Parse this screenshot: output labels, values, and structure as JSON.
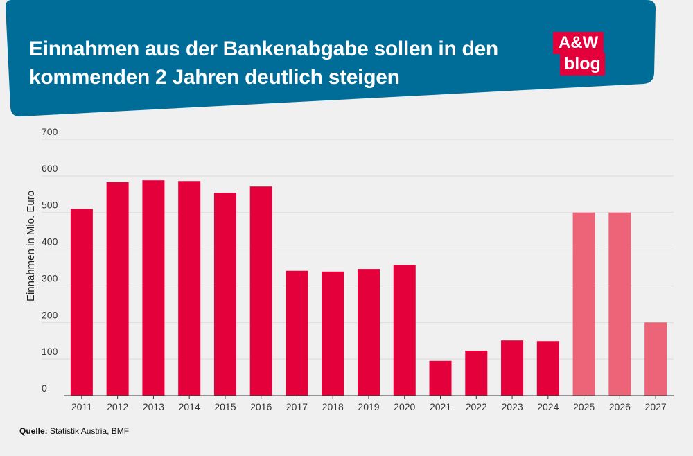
{
  "header": {
    "title_line_1": "Einnahmen aus der Bankenabgabe sollen in den",
    "title_line_2": "kommenden 2 Jahren deutlich steigen",
    "banner_color": "#006d99"
  },
  "logo": {
    "top": "A&W",
    "bottom": "blog",
    "color": "#e4003a"
  },
  "source": {
    "label": "Quelle:",
    "text": "Statistik Austria, BMF"
  },
  "chart_data": {
    "type": "bar",
    "title": "Einnahmen aus der Bankenabgabe sollen in den kommenden 2 Jahren deutlich steigen",
    "xlabel": "",
    "ylabel": "Einnahmen in Mio. Euro",
    "ylim": [
      0,
      700
    ],
    "yticks": [
      0,
      100,
      200,
      300,
      400,
      500,
      600,
      700
    ],
    "grid": true,
    "categories": [
      "2011",
      "2012",
      "2013",
      "2014",
      "2015",
      "2016",
      "2017",
      "2018",
      "2019",
      "2020",
      "2021",
      "2022",
      "2023",
      "2024",
      "2025",
      "2026",
      "2027"
    ],
    "values": [
      510,
      583,
      588,
      586,
      554,
      571,
      341,
      339,
      346,
      357,
      95,
      123,
      151,
      149,
      500,
      500,
      200
    ],
    "colors": {
      "actual": "#e4003a",
      "forecast": "#ed6479",
      "grid": "#d9d9d9"
    },
    "forecast_categories": [
      "2025",
      "2026",
      "2027"
    ]
  }
}
